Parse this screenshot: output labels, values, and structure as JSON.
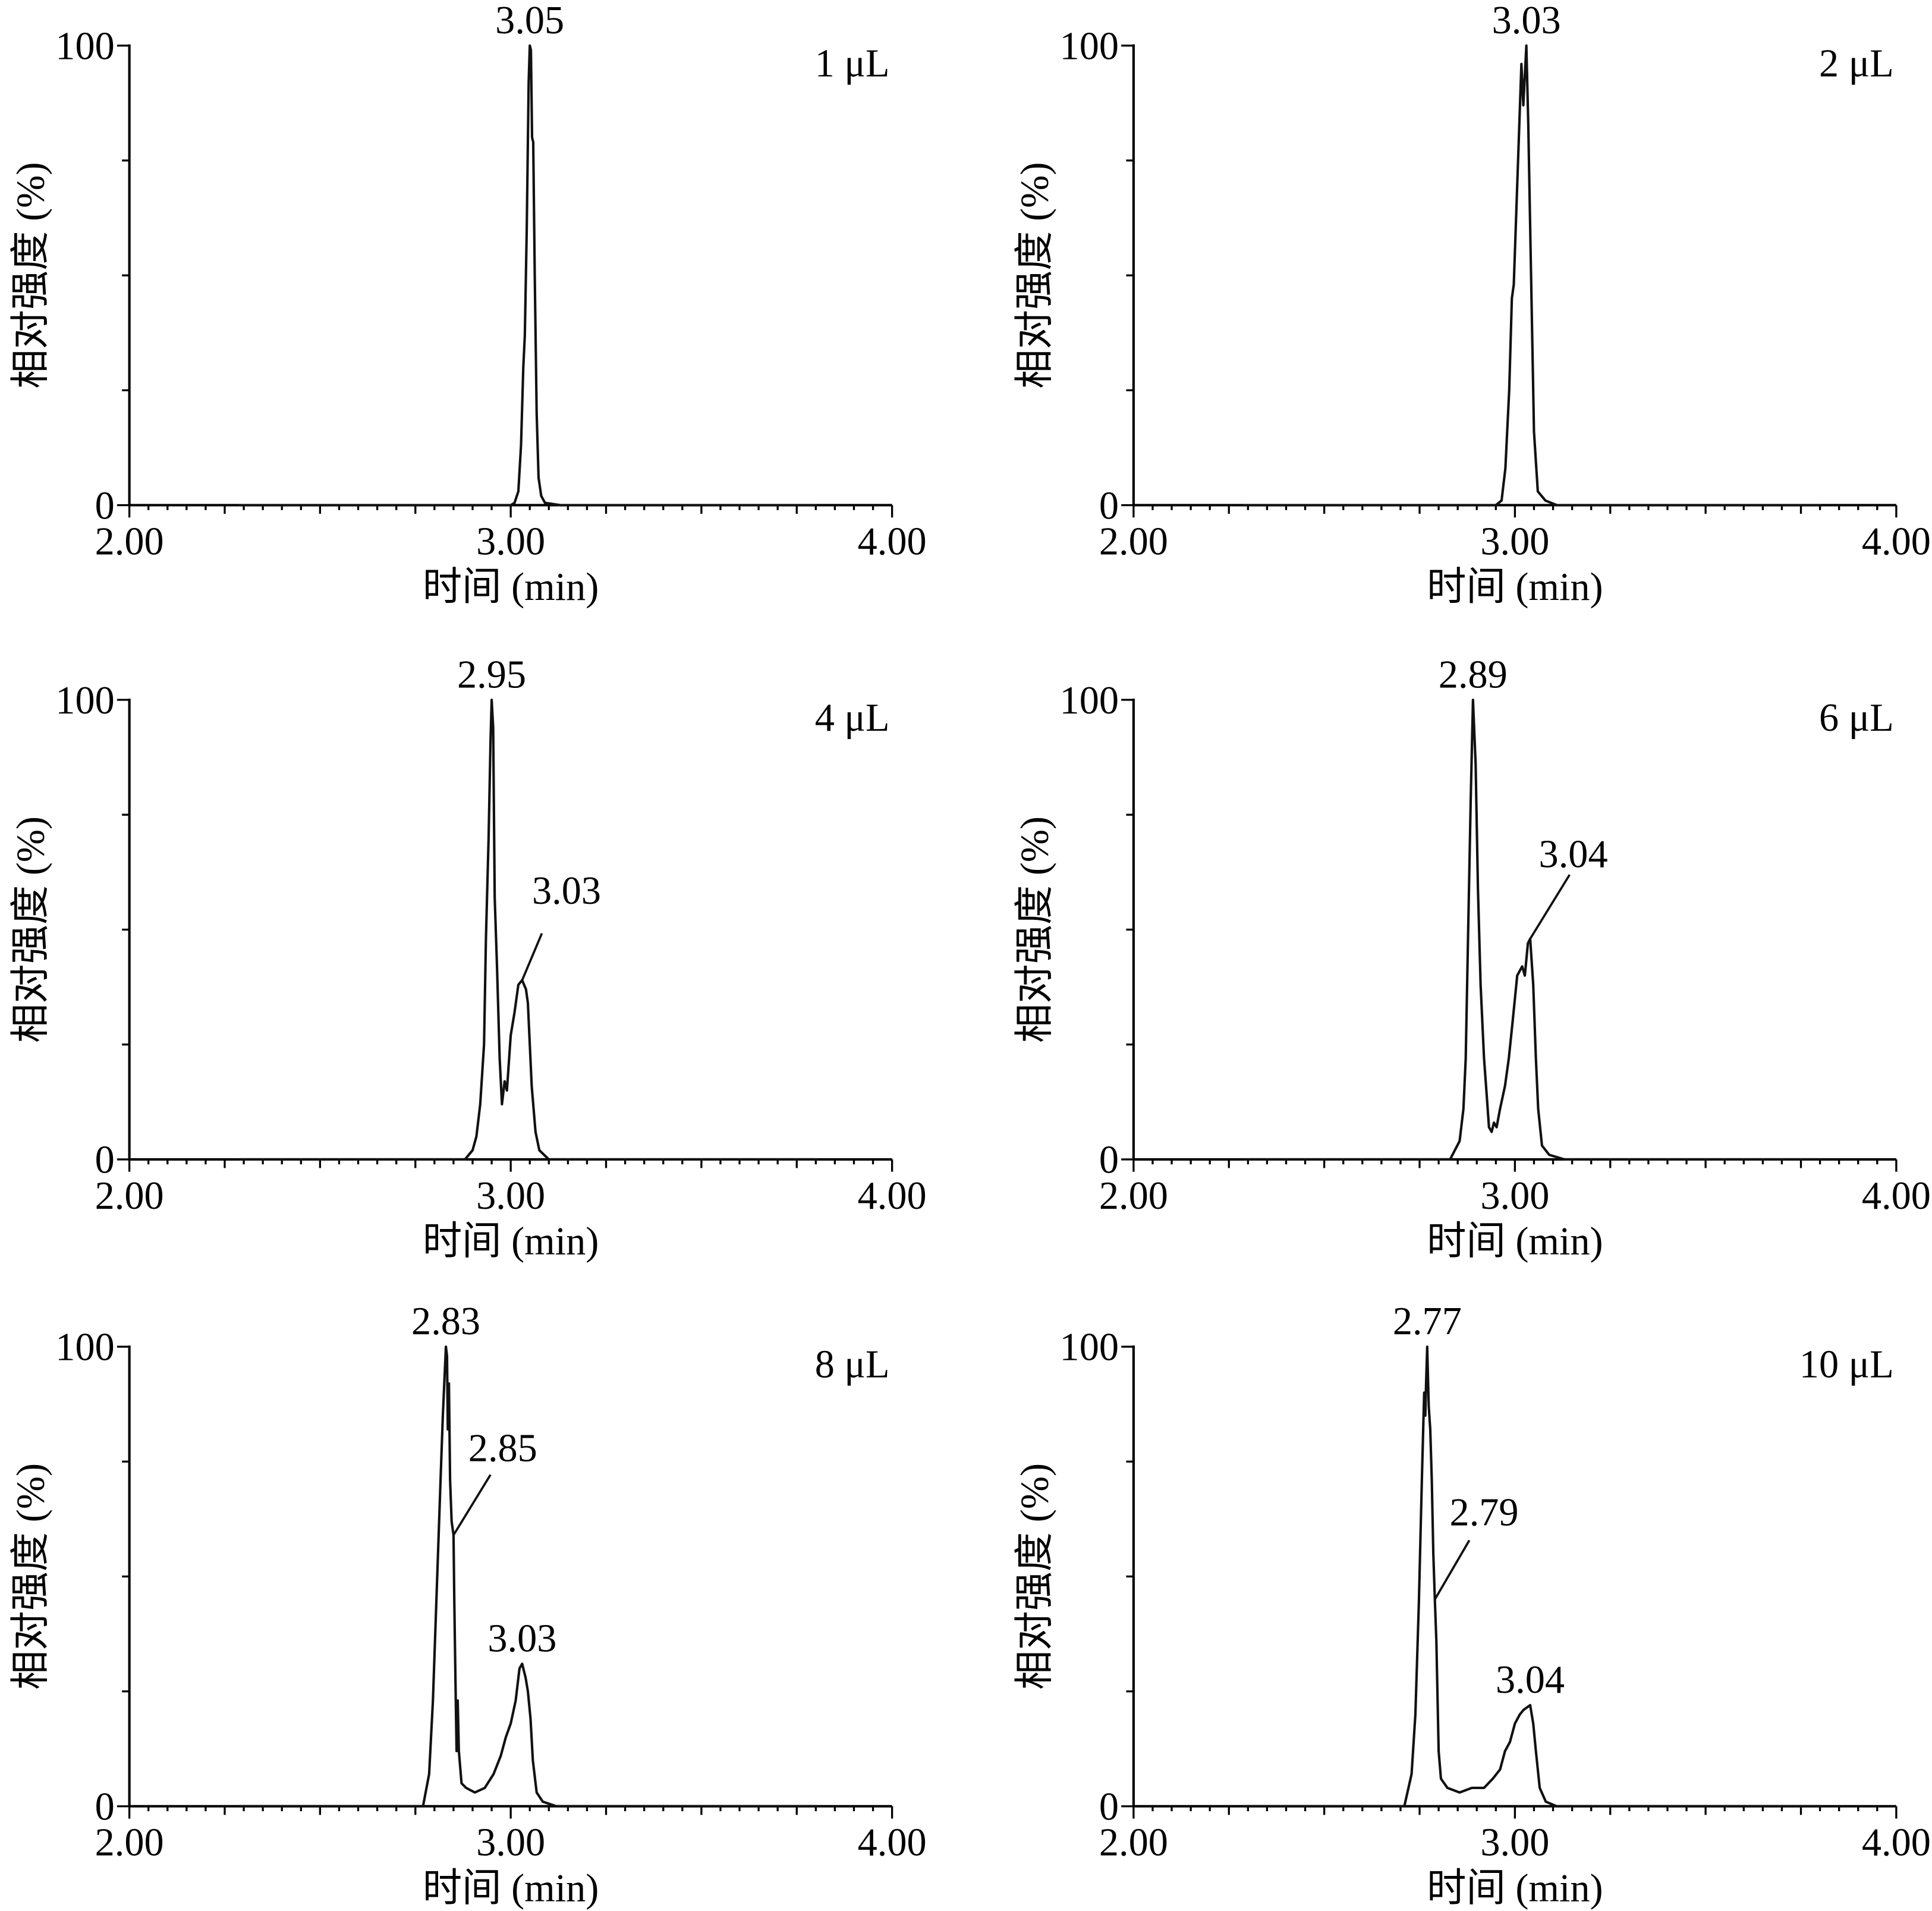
{
  "chart_data": [
    {
      "type": "line",
      "panel_label": "1 μL",
      "xlabel": "时间 (min)",
      "ylabel": "相对强度 (%)",
      "xlim": [
        2.0,
        4.0
      ],
      "ylim": [
        0,
        100
      ],
      "x_ticks": [
        "2.00",
        "3.00",
        "4.00"
      ],
      "y_ticks": [
        "0",
        "100"
      ],
      "grid": false,
      "series": [
        {
          "points": [
            [
              2.29,
              0
            ],
            [
              3.0,
              0
            ],
            [
              3.01,
              0.5
            ],
            [
              3.02,
              3
            ],
            [
              3.027,
              13
            ],
            [
              3.033,
              30
            ],
            [
              3.037,
              37
            ],
            [
              3.042,
              60
            ],
            [
              3.047,
              92
            ],
            [
              3.05,
              100
            ],
            [
              3.053,
              99
            ],
            [
              3.056,
              80
            ],
            [
              3.059,
              79
            ],
            [
              3.063,
              50
            ],
            [
              3.068,
              20
            ],
            [
              3.073,
              6
            ],
            [
              3.08,
              2
            ],
            [
              3.09,
              0.5
            ],
            [
              3.13,
              0
            ],
            [
              3.8,
              0
            ]
          ]
        }
      ],
      "annotations": [
        {
          "text": "3.05",
          "x": 3.05,
          "y": 100
        }
      ]
    },
    {
      "type": "line",
      "panel_label": "2 μL",
      "xlabel": "时间 (min)",
      "ylabel": "相对强度 (%)",
      "xlim": [
        2.0,
        4.0
      ],
      "ylim": [
        0,
        100
      ],
      "x_ticks": [
        "2.00",
        "3.00",
        "4.00"
      ],
      "y_ticks": [
        "0",
        "100"
      ],
      "grid": false,
      "series": [
        {
          "points": [
            [
              2.29,
              0
            ],
            [
              2.95,
              0
            ],
            [
              2.965,
              1
            ],
            [
              2.975,
              8
            ],
            [
              2.985,
              25
            ],
            [
              2.992,
              45
            ],
            [
              2.997,
              48
            ],
            [
              3.007,
              72
            ],
            [
              3.017,
              96
            ],
            [
              3.022,
              87
            ],
            [
              3.03,
              100
            ],
            [
              3.035,
              83
            ],
            [
              3.041,
              56
            ],
            [
              3.05,
              16
            ],
            [
              3.06,
              3
            ],
            [
              3.08,
              1
            ],
            [
              3.11,
              0
            ],
            [
              3.8,
              0
            ]
          ]
        }
      ],
      "annotations": [
        {
          "text": "3.03",
          "x": 3.03,
          "y": 100
        }
      ]
    },
    {
      "type": "line",
      "panel_label": "4 μL",
      "xlabel": "时间 (min)",
      "ylabel": "相对强度 (%)",
      "xlim": [
        2.0,
        4.0
      ],
      "ylim": [
        0,
        100
      ],
      "x_ticks": [
        "2.00",
        "3.00",
        "4.00"
      ],
      "y_ticks": [
        "0",
        "100"
      ],
      "grid": false,
      "series": [
        {
          "points": [
            [
              2.29,
              0
            ],
            [
              2.88,
              0
            ],
            [
              2.9,
              2
            ],
            [
              2.91,
              5
            ],
            [
              2.92,
              12
            ],
            [
              2.93,
              25
            ],
            [
              2.935,
              48
            ],
            [
              2.942,
              70
            ],
            [
              2.947,
              91
            ],
            [
              2.95,
              100
            ],
            [
              2.954,
              94
            ],
            [
              2.958,
              57
            ],
            [
              2.964,
              42
            ],
            [
              2.971,
              22
            ],
            [
              2.977,
              12
            ],
            [
              2.984,
              17
            ],
            [
              2.99,
              15
            ],
            [
              3.0,
              27
            ],
            [
              3.01,
              32
            ],
            [
              3.02,
              38
            ],
            [
              3.03,
              39
            ],
            [
              3.04,
              37
            ],
            [
              3.045,
              34
            ],
            [
              3.055,
              16
            ],
            [
              3.065,
              6
            ],
            [
              3.075,
              2
            ],
            [
              3.1,
              0
            ],
            [
              3.8,
              0
            ]
          ]
        }
      ],
      "annotations": [
        {
          "text": "2.95",
          "x": 2.95,
          "y": 100
        },
        {
          "text": "3.03",
          "x": 3.03,
          "y": 39
        }
      ]
    },
    {
      "type": "line",
      "panel_label": "6 μL",
      "xlabel": "时间 (min)",
      "ylabel": "相对强度 (%)",
      "xlim": [
        2.0,
        4.0
      ],
      "ylim": [
        0,
        100
      ],
      "x_ticks": [
        "2.00",
        "3.00",
        "4.00"
      ],
      "y_ticks": [
        "0",
        "100"
      ],
      "grid": false,
      "series": [
        {
          "points": [
            [
              2.29,
              0
            ],
            [
              2.83,
              0
            ],
            [
              2.855,
              4
            ],
            [
              2.865,
              11
            ],
            [
              2.871,
              22
            ],
            [
              2.877,
              48
            ],
            [
              2.884,
              78
            ],
            [
              2.89,
              100
            ],
            [
              2.897,
              86
            ],
            [
              2.903,
              59
            ],
            [
              2.91,
              38
            ],
            [
              2.919,
              22
            ],
            [
              2.926,
              14
            ],
            [
              2.932,
              7
            ],
            [
              2.939,
              6
            ],
            [
              2.945,
              8
            ],
            [
              2.952,
              7
            ],
            [
              2.961,
              11
            ],
            [
              2.974,
              16
            ],
            [
              2.984,
              22
            ],
            [
              2.994,
              30
            ],
            [
              3.006,
              40
            ],
            [
              3.019,
              42
            ],
            [
              3.026,
              40
            ],
            [
              3.034,
              47
            ],
            [
              3.04,
              48
            ],
            [
              3.048,
              38
            ],
            [
              3.055,
              22
            ],
            [
              3.061,
              11
            ],
            [
              3.071,
              3
            ],
            [
              3.09,
              1
            ],
            [
              3.13,
              0
            ],
            [
              3.8,
              0
            ]
          ]
        }
      ],
      "annotations": [
        {
          "text": "2.89",
          "x": 2.89,
          "y": 100
        },
        {
          "text": "3.04",
          "x": 3.04,
          "y": 48
        }
      ]
    },
    {
      "type": "line",
      "panel_label": "8 μL",
      "xlabel": "时间 (min)",
      "ylabel": "相对强度 (%)",
      "xlim": [
        2.0,
        4.0
      ],
      "ylim": [
        0,
        100
      ],
      "x_ticks": [
        "2.00",
        "3.00",
        "4.00"
      ],
      "y_ticks": [
        "0",
        "100"
      ],
      "grid": false,
      "series": [
        {
          "points": [
            [
              2.29,
              0
            ],
            [
              2.77,
              0
            ],
            [
              2.786,
              7
            ],
            [
              2.796,
              23
            ],
            [
              2.806,
              47
            ],
            [
              2.816,
              71
            ],
            [
              2.822,
              85
            ],
            [
              2.83,
              100
            ],
            [
              2.833,
              98
            ],
            [
              2.835,
              82
            ],
            [
              2.838,
              92
            ],
            [
              2.841,
              71
            ],
            [
              2.845,
              62
            ],
            [
              2.85,
              59
            ],
            [
              2.852,
              45
            ],
            [
              2.855,
              28
            ],
            [
              2.858,
              12
            ],
            [
              2.861,
              23
            ],
            [
              2.864,
              12
            ],
            [
              2.871,
              5
            ],
            [
              2.883,
              4
            ],
            [
              2.906,
              3
            ],
            [
              2.932,
              4
            ],
            [
              2.955,
              7
            ],
            [
              2.974,
              11
            ],
            [
              2.987,
              15
            ],
            [
              3.0,
              18
            ],
            [
              3.013,
              23
            ],
            [
              3.023,
              30
            ],
            [
              3.03,
              31
            ],
            [
              3.039,
              28
            ],
            [
              3.045,
              25
            ],
            [
              3.052,
              19
            ],
            [
              3.058,
              10
            ],
            [
              3.068,
              3
            ],
            [
              3.084,
              1
            ],
            [
              3.12,
              0
            ],
            [
              3.8,
              0
            ]
          ]
        }
      ],
      "annotations": [
        {
          "text": "2.83",
          "x": 2.83,
          "y": 100
        },
        {
          "text": "2.85",
          "x": 2.85,
          "y": 59
        },
        {
          "text": "3.03",
          "x": 3.03,
          "y": 31
        }
      ]
    },
    {
      "type": "line",
      "panel_label": "10 μL",
      "xlabel": "时间 (min)",
      "ylabel": "相对强度 (%)",
      "xlim": [
        2.0,
        4.0
      ],
      "ylim": [
        0,
        100
      ],
      "x_ticks": [
        "2.00",
        "3.00",
        "4.00"
      ],
      "y_ticks": [
        "0",
        "100"
      ],
      "grid": false,
      "series": [
        {
          "points": [
            [
              2.29,
              0
            ],
            [
              2.71,
              0
            ],
            [
              2.729,
              7
            ],
            [
              2.739,
              20
            ],
            [
              2.748,
              44
            ],
            [
              2.756,
              71
            ],
            [
              2.762,
              90
            ],
            [
              2.765,
              85
            ],
            [
              2.767,
              92
            ],
            [
              2.77,
              100
            ],
            [
              2.774,
              87
            ],
            [
              2.778,
              82
            ],
            [
              2.782,
              71
            ],
            [
              2.786,
              55
            ],
            [
              2.79,
              45
            ],
            [
              2.794,
              36
            ],
            [
              2.8,
              12
            ],
            [
              2.806,
              6
            ],
            [
              2.823,
              4
            ],
            [
              2.855,
              3
            ],
            [
              2.887,
              4
            ],
            [
              2.919,
              4
            ],
            [
              2.942,
              6
            ],
            [
              2.961,
              8
            ],
            [
              2.974,
              12
            ],
            [
              2.987,
              14
            ],
            [
              3.0,
              18
            ],
            [
              3.013,
              20
            ],
            [
              3.023,
              21
            ],
            [
              3.04,
              22
            ],
            [
              3.048,
              18
            ],
            [
              3.055,
              12
            ],
            [
              3.065,
              4
            ],
            [
              3.081,
              1
            ],
            [
              3.11,
              0
            ],
            [
              3.8,
              0
            ]
          ]
        }
      ],
      "annotations": [
        {
          "text": "2.77",
          "x": 2.77,
          "y": 100
        },
        {
          "text": "2.79",
          "x": 2.79,
          "y": 45
        },
        {
          "text": "3.04",
          "x": 3.04,
          "y": 22
        }
      ]
    }
  ]
}
